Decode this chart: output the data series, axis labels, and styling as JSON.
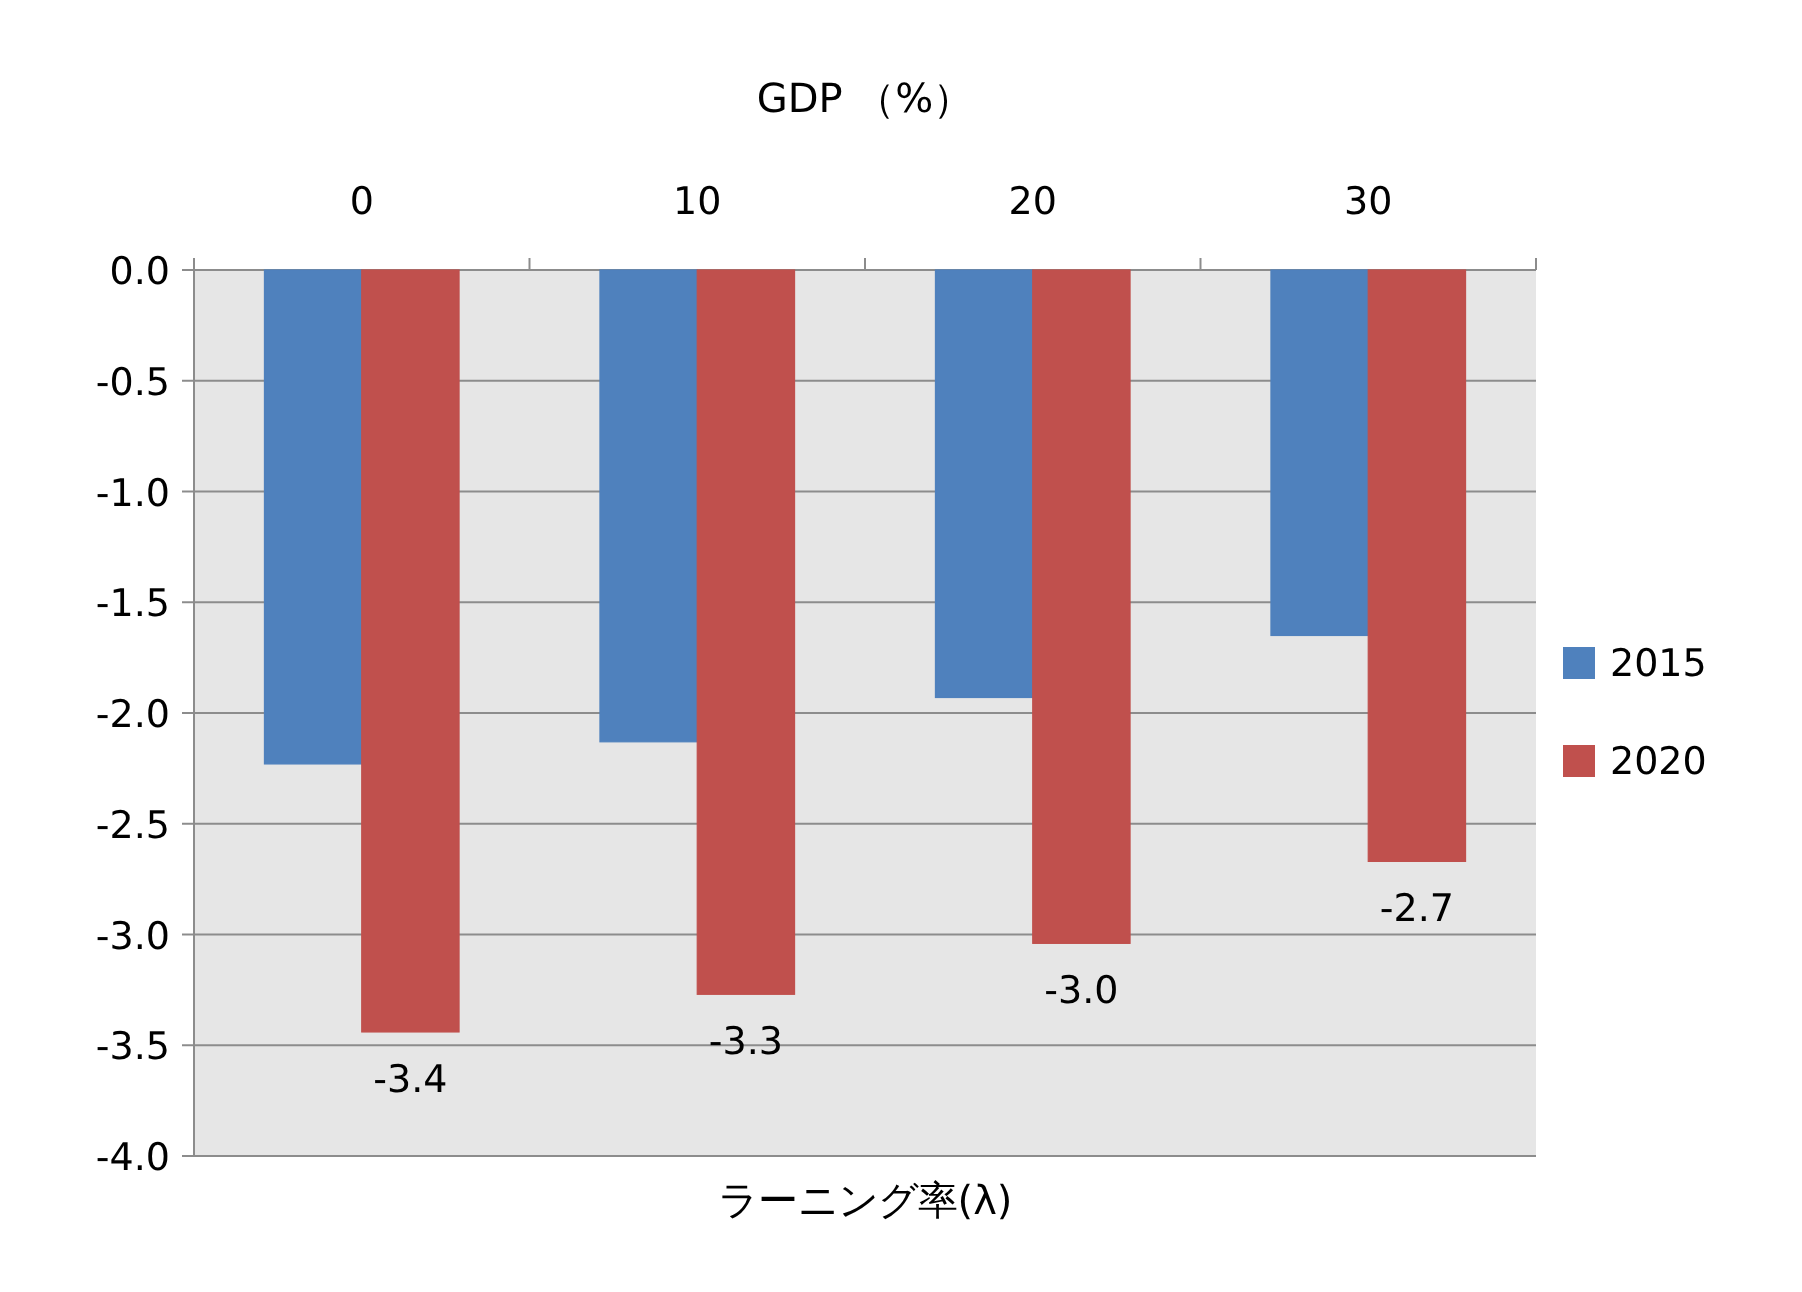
{
  "chart_data": {
    "type": "bar",
    "title": "GDP （%）",
    "xlabel": "ラーニング率(λ)",
    "categories": [
      "0",
      "10",
      "20",
      "30"
    ],
    "series": [
      {
        "name": "2015",
        "color": "#4f81bd",
        "values": [
          -2.23,
          -2.13,
          -1.93,
          -1.65
        ]
      },
      {
        "name": "2020",
        "color": "#c0504d",
        "values": [
          -3.44,
          -3.27,
          -3.04,
          -2.67
        ],
        "value_labels": [
          "-3.4",
          "-3.3",
          "-3.0",
          "-2.7"
        ]
      }
    ],
    "ylim": [
      -4.0,
      0.0
    ],
    "yticks": [
      {
        "value": 0,
        "label": "0.0"
      },
      {
        "value": -0.5,
        "label": "-0.5"
      },
      {
        "value": -1.0,
        "label": "-1.0"
      },
      {
        "value": -1.5,
        "label": "-1.5"
      },
      {
        "value": -2.0,
        "label": "-2.0"
      },
      {
        "value": -2.5,
        "label": "-2.5"
      },
      {
        "value": -3.0,
        "label": "-3.0"
      },
      {
        "value": -3.5,
        "label": "-3.5"
      },
      {
        "value": -4.0,
        "label": "-4.0"
      }
    ],
    "grid": "y",
    "legend": "right"
  }
}
